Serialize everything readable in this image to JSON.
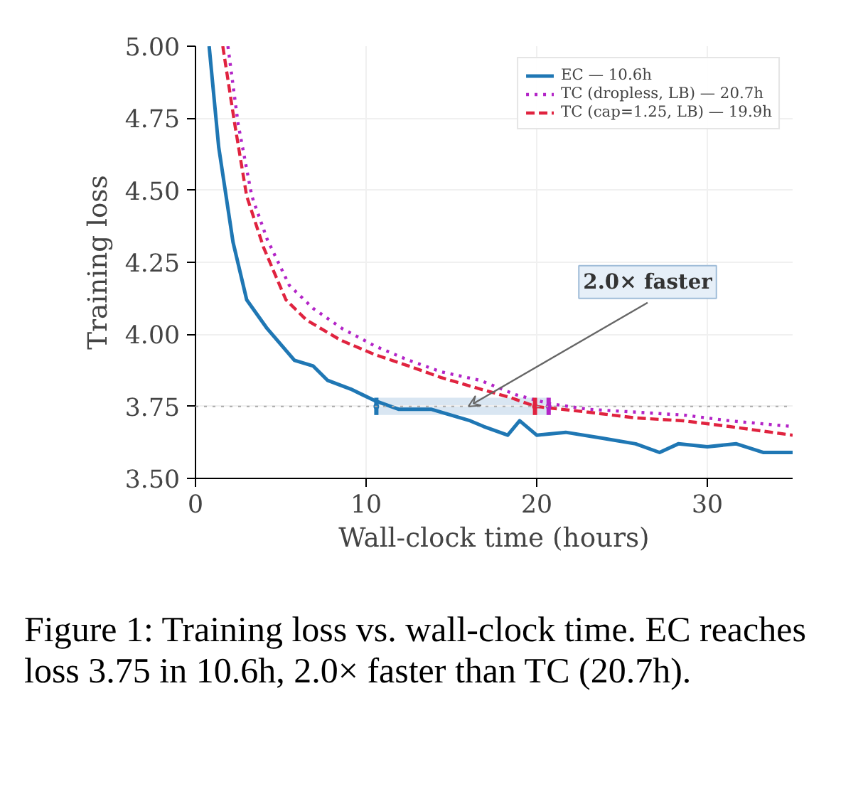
{
  "chart_data": {
    "type": "line",
    "xlabel": "Wall-clock time (hours)",
    "ylabel": "Training loss",
    "xlim": [
      0,
      35
    ],
    "xticks": [
      0,
      10,
      20,
      30
    ],
    "ylim": [
      3.5,
      5.0
    ],
    "yticks": [
      {
        "value": 3.5,
        "label": "3.50"
      },
      {
        "value": 3.75,
        "label": "3.75"
      },
      {
        "value": 4.0,
        "label": "4.00"
      },
      {
        "value": 4.25,
        "label": "4.25"
      },
      {
        "value": 4.5,
        "label": "4.50"
      },
      {
        "value": 4.75,
        "label": "4.75"
      },
      {
        "value": 5.0,
        "label": "5.00"
      }
    ],
    "grid": true,
    "legend": "top right",
    "series": [
      {
        "name": "EC — 10.6h",
        "color": "#1f77b4",
        "line_style": "solid",
        "x": [
          0.8,
          1.36,
          2.2,
          3.0,
          4.2,
          5.8,
          6.9,
          7.75,
          9.1,
          10.5,
          11.9,
          13.8,
          16.1,
          16.9,
          18.3,
          19.0,
          20.0,
          21.7,
          23.8,
          25.8,
          27.2,
          28.3,
          30.0,
          31.7,
          33.3,
          35.0
        ],
        "values": [
          5.0,
          4.65,
          4.32,
          4.12,
          4.02,
          3.91,
          3.89,
          3.84,
          3.81,
          3.77,
          3.74,
          3.74,
          3.7,
          3.68,
          3.65,
          3.7,
          3.65,
          3.66,
          3.64,
          3.62,
          3.59,
          3.62,
          3.61,
          3.62,
          3.59,
          3.59
        ]
      },
      {
        "name": "TC (dropless, LB) — 20.7h",
        "color": "#b324c7",
        "line_style": "dotted",
        "x": [
          1.9,
          2.5,
          3.3,
          4.2,
          5.5,
          6.9,
          8.6,
          10.5,
          12.5,
          14.4,
          16.7,
          18.8,
          20.7,
          23.0,
          25.8,
          28.6,
          31.3,
          35.0
        ],
        "values": [
          5.0,
          4.73,
          4.48,
          4.33,
          4.17,
          4.09,
          4.02,
          3.96,
          3.91,
          3.87,
          3.84,
          3.79,
          3.76,
          3.74,
          3.73,
          3.72,
          3.7,
          3.68
        ]
      },
      {
        "name": "TC (cap=1.25, LB) — 19.9h",
        "color": "#e0233f",
        "line_style": "dashed",
        "x": [
          1.6,
          2.3,
          3.0,
          4.0,
          5.3,
          6.5,
          8.5,
          10.5,
          12.5,
          14.4,
          16.7,
          18.5,
          19.9,
          23.0,
          25.8,
          28.6,
          31.3,
          35.0
        ],
        "values": [
          5.0,
          4.73,
          4.48,
          4.3,
          4.12,
          4.05,
          3.98,
          3.93,
          3.89,
          3.85,
          3.81,
          3.78,
          3.75,
          3.73,
          3.71,
          3.7,
          3.68,
          3.65
        ]
      },
      {
        "type": "area",
        "color": "#c9dcec",
        "x": [
          10.6,
          20.7
        ],
        "values": [
          null,
          null
        ],
        "lower": [
          3.72,
          3.72
        ],
        "upper": [
          3.78,
          3.78
        ]
      },
      {
        "type": "scatter",
        "marker": "none",
        "x": [
          10.6,
          19.9,
          20.7
        ],
        "values": [
          3.75,
          3.75,
          3.75
        ],
        "errors": [
          0.03,
          0.03,
          0.03
        ],
        "colors": [
          "#1f77b4",
          "#e0233f",
          "#b324c7"
        ]
      }
    ],
    "ref_lines": [
      {
        "axis": "y",
        "value": 3.75,
        "color": "#aaaaaa",
        "line_style": "dotted"
      }
    ],
    "annotations": [
      {
        "text": "2.0× faster",
        "x": 16,
        "y": 3.75
      },
      "Figure 1: Training loss vs. wall-clock time. EC reaches loss 3.75 in 10.6h, 2.0× faster than TC (20.7h)."
    ]
  }
}
